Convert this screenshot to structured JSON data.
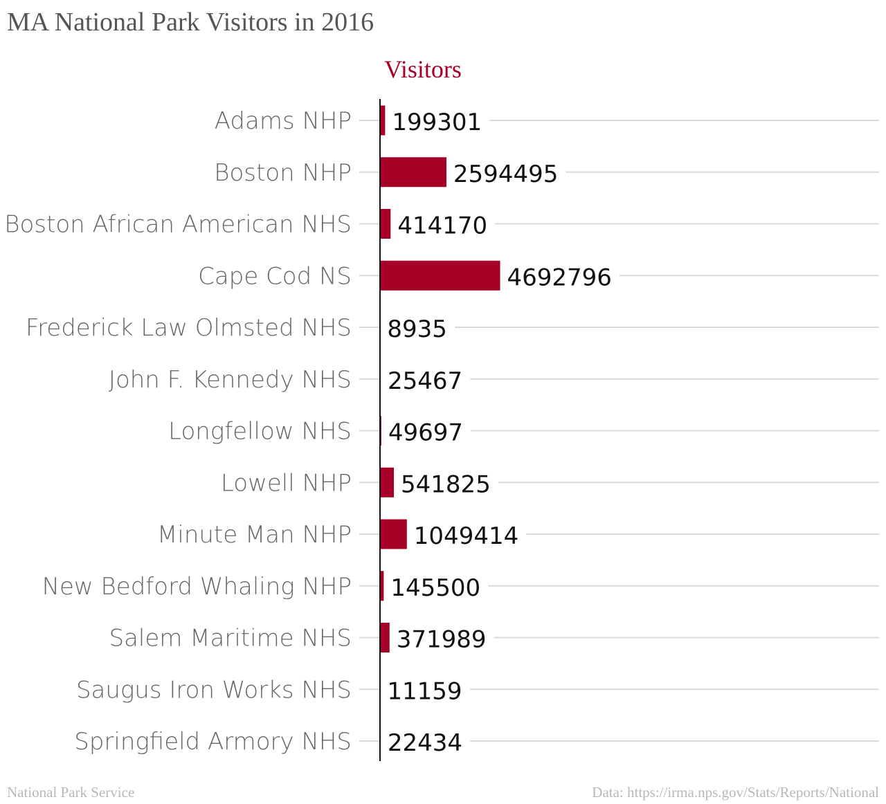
{
  "title": "MA National Park Visitors in 2016",
  "source": "National Park Service",
  "data_credit": "Data: https://irma.nps.gov/Stats/Reports/National",
  "colors": {
    "bar": "#a50026",
    "grid": "#d9d9d9",
    "axis": "#111111"
  },
  "chart_data": {
    "type": "bar",
    "orientation": "horizontal",
    "series_title": "Visitors",
    "categories": [
      "Adams NHP",
      "Boston NHP",
      "Boston African American NHS",
      "Cape Cod NS",
      "Frederick Law Olmsted NHS",
      "John F. Kennedy NHS",
      "Longfellow NHS",
      "Lowell NHP",
      "Minute Man NHP",
      "New Bedford Whaling NHP",
      "Salem Maritime NHS",
      "Saugus Iron Works NHS",
      "Springfield Armory NHS"
    ],
    "values": [
      199301,
      2594495,
      414170,
      4692796,
      8935,
      25467,
      49697,
      541825,
      1049414,
      145500,
      371989,
      11159,
      22434
    ],
    "value_labels": [
      "199301",
      "2594495",
      "414170",
      "4692796",
      "8935",
      "25467",
      "49697",
      "541825",
      "1049414",
      "145500",
      "371989",
      "11159",
      "22434"
    ],
    "xlim": [
      0,
      19500000
    ],
    "grid": true,
    "legend": "none"
  }
}
